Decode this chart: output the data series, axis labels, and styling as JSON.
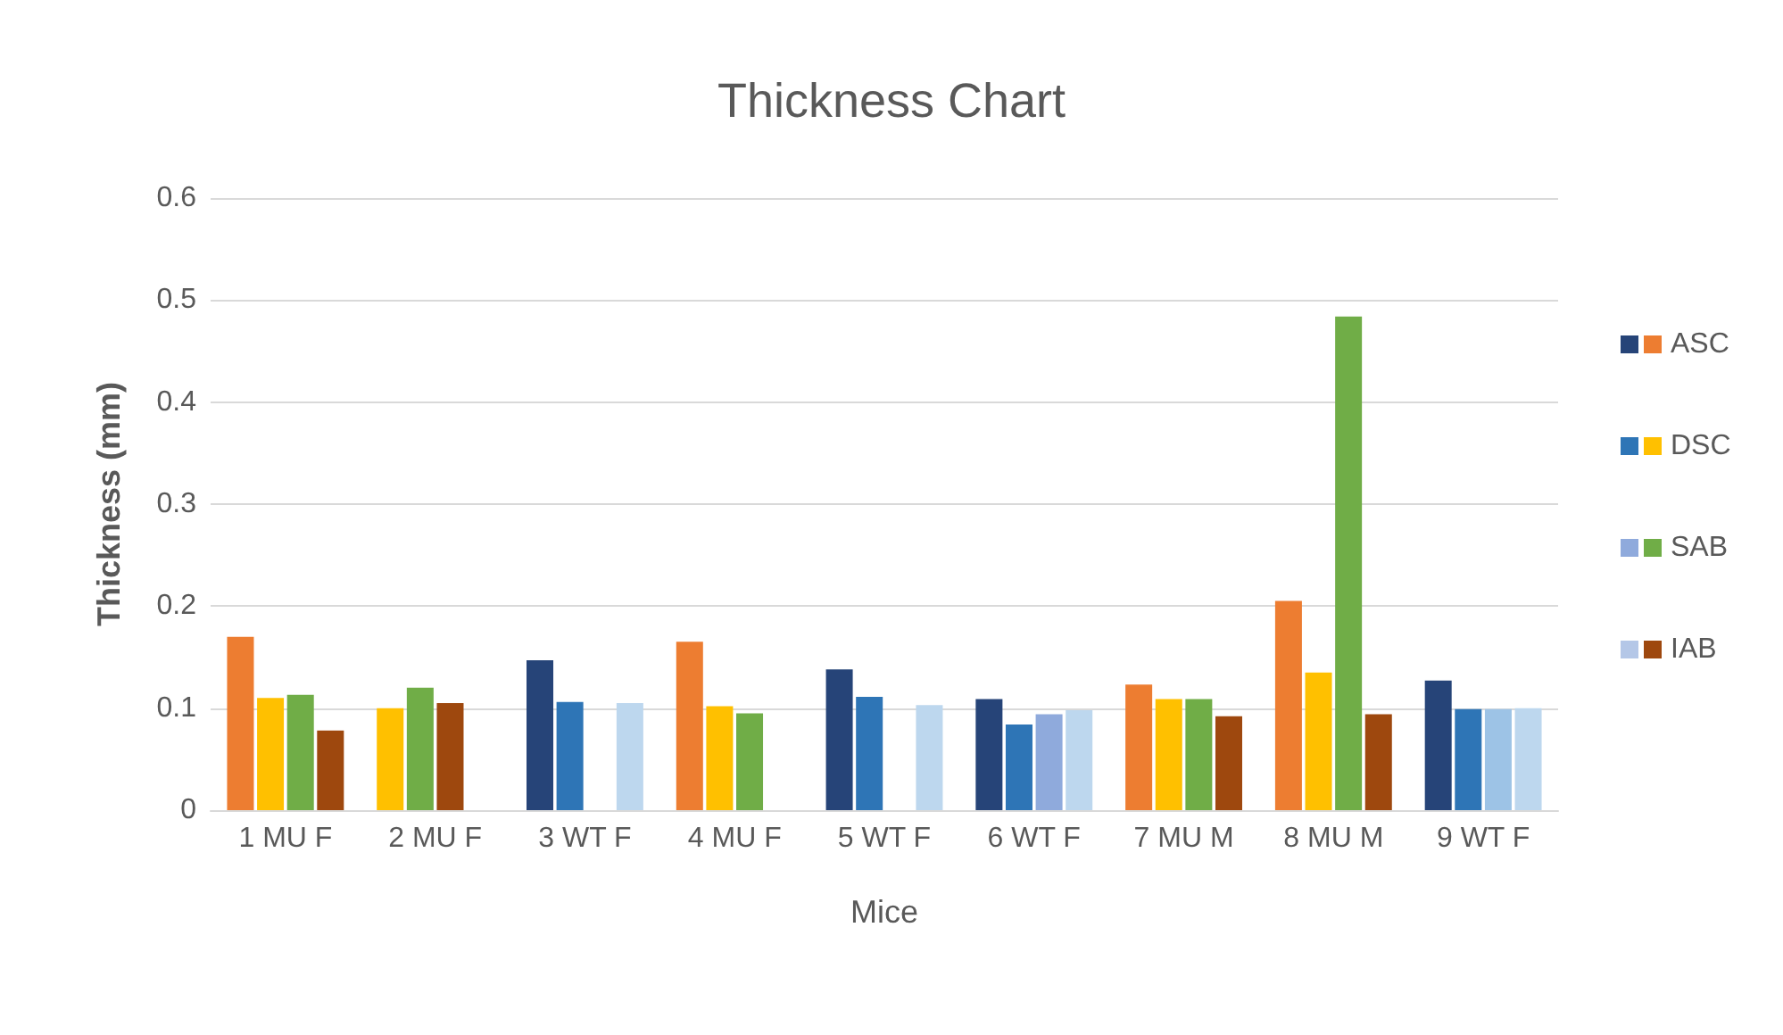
{
  "chart_data": {
    "type": "bar",
    "title": "Thickness Chart",
    "xlabel": "Mice",
    "ylabel": "Thickness (mm)",
    "categories": [
      "1 MU F",
      "2 MU F",
      "3 WT F",
      "4 MU F",
      "5 WT F",
      "6 WT F",
      "7 MU M",
      "8 MU M",
      "9 WT F"
    ],
    "series": [
      {
        "name": "ASC",
        "color": "#264478",
        "values": [
          0.17,
          0.1,
          0.147,
          0.165,
          0.138,
          0.109,
          0.123,
          0.205,
          0.127
        ],
        "colors": [
          "#ed7d31",
          "#ffc000",
          "#264478",
          "#ed7d31",
          "#264478",
          "#264478",
          "#ed7d31",
          "#ed7d31",
          "#264478"
        ]
      },
      {
        "name": "DSC",
        "color": "#2e75b6",
        "values": [
          0.11,
          0.12,
          0.106,
          0.102,
          0.111,
          0.084,
          0.109,
          0.135,
          0.099
        ],
        "colors": [
          "#ffc000",
          "#70ad47",
          "#2e75b6",
          "#ffc000",
          "#2e75b6",
          "#2e75b6",
          "#ffc000",
          "#ffc000",
          "#2e75b6"
        ]
      },
      {
        "name": "SAB",
        "color": "#8faadc",
        "values": [
          0.113,
          0.105,
          null,
          0.095,
          null,
          0.094,
          0.109,
          0.484,
          0.099
        ],
        "colors": [
          "#70ad47",
          "#9e480e",
          "#8faadc",
          "#70ad47",
          "#8faadc",
          "#8faadc",
          "#70ad47",
          "#70ad47",
          "#9dc3e6"
        ]
      },
      {
        "name": "IAB",
        "color": "#b4c7e7",
        "values": [
          0.078,
          null,
          0.105,
          null,
          0.103,
          0.098,
          0.092,
          0.094,
          0.1
        ],
        "colors": [
          "#9e480e",
          "#9e480e",
          "#bdd7ee",
          "#9e480e",
          "#bdd7ee",
          "#bdd7ee",
          "#9e480e",
          "#9e480e",
          "#bdd7ee"
        ]
      }
    ],
    "ylim": [
      0,
      0.6
    ],
    "yticks": [
      0,
      0.1,
      0.2,
      0.3,
      0.4,
      0.5,
      0.6
    ],
    "grid": "y",
    "legend": "right"
  }
}
